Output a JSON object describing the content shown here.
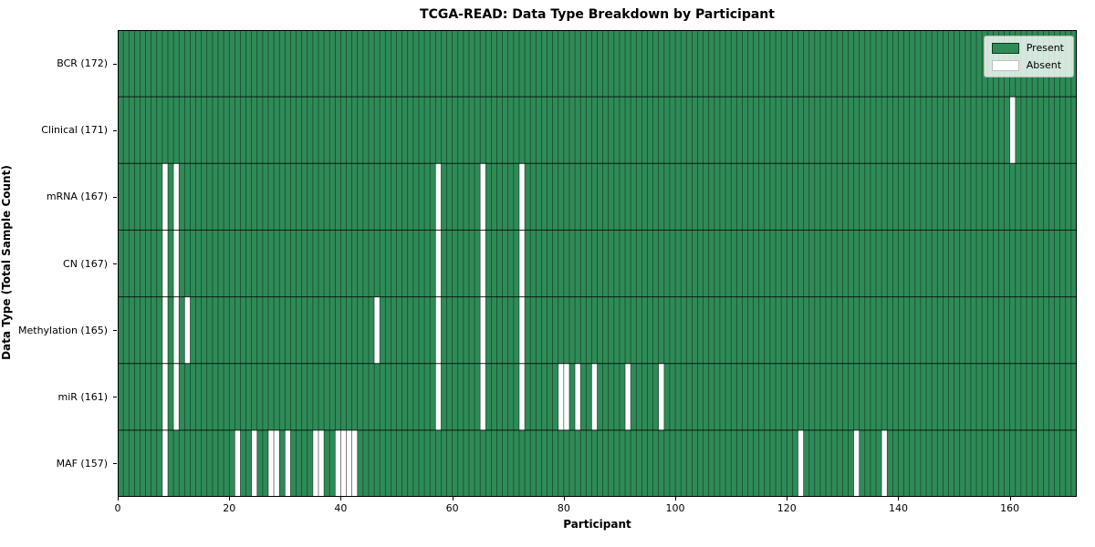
{
  "title": "TCGA-READ: Data Type Breakdown by Participant",
  "axes": {
    "xlabel": "Participant",
    "ylabel": "Data Type (Total Sample Count)"
  },
  "legend": {
    "present_label": "Present",
    "absent_label": "Absent"
  },
  "chart_data": {
    "type": "heatmap",
    "title": "TCGA-READ: Data Type Breakdown by Participant",
    "xlabel": "Participant",
    "ylabel": "Data Type (Total Sample Count)",
    "n_participants": 172,
    "xlim": [
      0,
      172
    ],
    "x_ticks": [
      0,
      20,
      40,
      60,
      80,
      100,
      120,
      140,
      160
    ],
    "legend_position": "upper right",
    "grid": "cell-borders",
    "colors": {
      "present": "#2e8b57",
      "absent": "#ffffff",
      "cell_border": "rgba(0,0,0,0.55)",
      "row_border": "rgba(0,0,0,0.8)",
      "absent_border": "rgba(0,0,0,0.18)"
    },
    "rows": [
      {
        "label": "BCR (172)",
        "data_type": "BCR",
        "total": 172,
        "absent_participants": []
      },
      {
        "label": "Clinical (171)",
        "data_type": "Clinical",
        "total": 171,
        "absent_participants": [
          160
        ]
      },
      {
        "label": "mRNA (167)",
        "data_type": "mRNA",
        "total": 167,
        "absent_participants": [
          8,
          10,
          57,
          65,
          72
        ]
      },
      {
        "label": "CN (167)",
        "data_type": "CN",
        "total": 167,
        "absent_participants": [
          8,
          10,
          57,
          65,
          72
        ]
      },
      {
        "label": "Methylation (165)",
        "data_type": "Methylation",
        "total": 165,
        "absent_participants": [
          8,
          10,
          12,
          46,
          57,
          65,
          72
        ]
      },
      {
        "label": "miR (161)",
        "data_type": "miR",
        "total": 161,
        "absent_participants": [
          8,
          10,
          57,
          65,
          72,
          79,
          80,
          82,
          85,
          91,
          97
        ]
      },
      {
        "label": "MAF (157)",
        "data_type": "MAF",
        "total": 157,
        "absent_participants": [
          8,
          21,
          24,
          27,
          28,
          30,
          35,
          36,
          39,
          40,
          41,
          42,
          122,
          132,
          137
        ]
      }
    ],
    "legend_entries": [
      {
        "label": "Present",
        "color": "#2e8b57"
      },
      {
        "label": "Absent",
        "color": "#ffffff"
      }
    ]
  }
}
